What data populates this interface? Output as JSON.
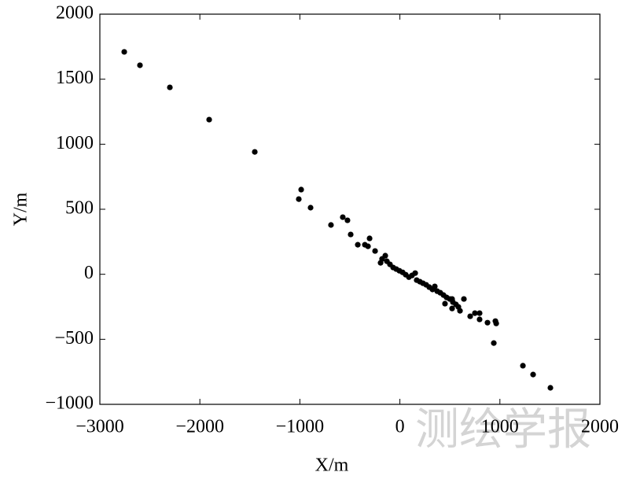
{
  "chart_data": {
    "type": "scatter",
    "xlabel": "X/m",
    "ylabel": "Y/m",
    "watermark": "测绘学报",
    "color": "#000000",
    "xlim": [
      -3000,
      2000
    ],
    "xticks": [
      {
        "value": -3000,
        "label": "−3000"
      },
      {
        "value": -2000,
        "label": "−2000"
      },
      {
        "value": -1000,
        "label": "−1000"
      },
      0,
      1000,
      2000
    ],
    "ylim": [
      -1000,
      2000
    ],
    "yticks": [
      {
        "value": -1000,
        "label": "−1000"
      },
      {
        "value": -500,
        "label": "−500"
      },
      0,
      500,
      1000,
      1500,
      2000
    ],
    "x": [
      -2756,
      -2599,
      -2300,
      -1907,
      -1451,
      -987,
      -1011,
      -893,
      -689,
      -571,
      -524,
      -492,
      -421,
      -350,
      -319,
      -303,
      -248,
      -178,
      -146,
      -193,
      -130,
      -99,
      -67,
      -36,
      -5,
      27,
      58,
      90,
      121,
      153,
      168,
      200,
      231,
      263,
      294,
      326,
      349,
      373,
      404,
      436,
      467,
      499,
      530,
      561,
      585,
      601,
      522,
      640,
      703,
      750,
      797,
      876,
      955,
      963,
      939,
      522,
      451,
      797,
      1230,
      1332,
      1505
    ],
    "y": [
      1710,
      1607,
      1437,
      1189,
      941,
      651,
      578,
      512,
      379,
      439,
      415,
      306,
      227,
      227,
      215,
      276,
      179,
      118,
      143,
      88,
      100,
      76,
      52,
      40,
      27,
      15,
      -3,
      -22,
      -9,
      9,
      -45,
      -57,
      -69,
      -81,
      -99,
      -117,
      -93,
      -130,
      -142,
      -160,
      -178,
      -190,
      -214,
      -232,
      -251,
      -281,
      -263,
      -190,
      -323,
      -299,
      -347,
      -372,
      -360,
      -378,
      -529,
      -190,
      -226,
      -299,
      -703,
      -771,
      -873
    ]
  }
}
